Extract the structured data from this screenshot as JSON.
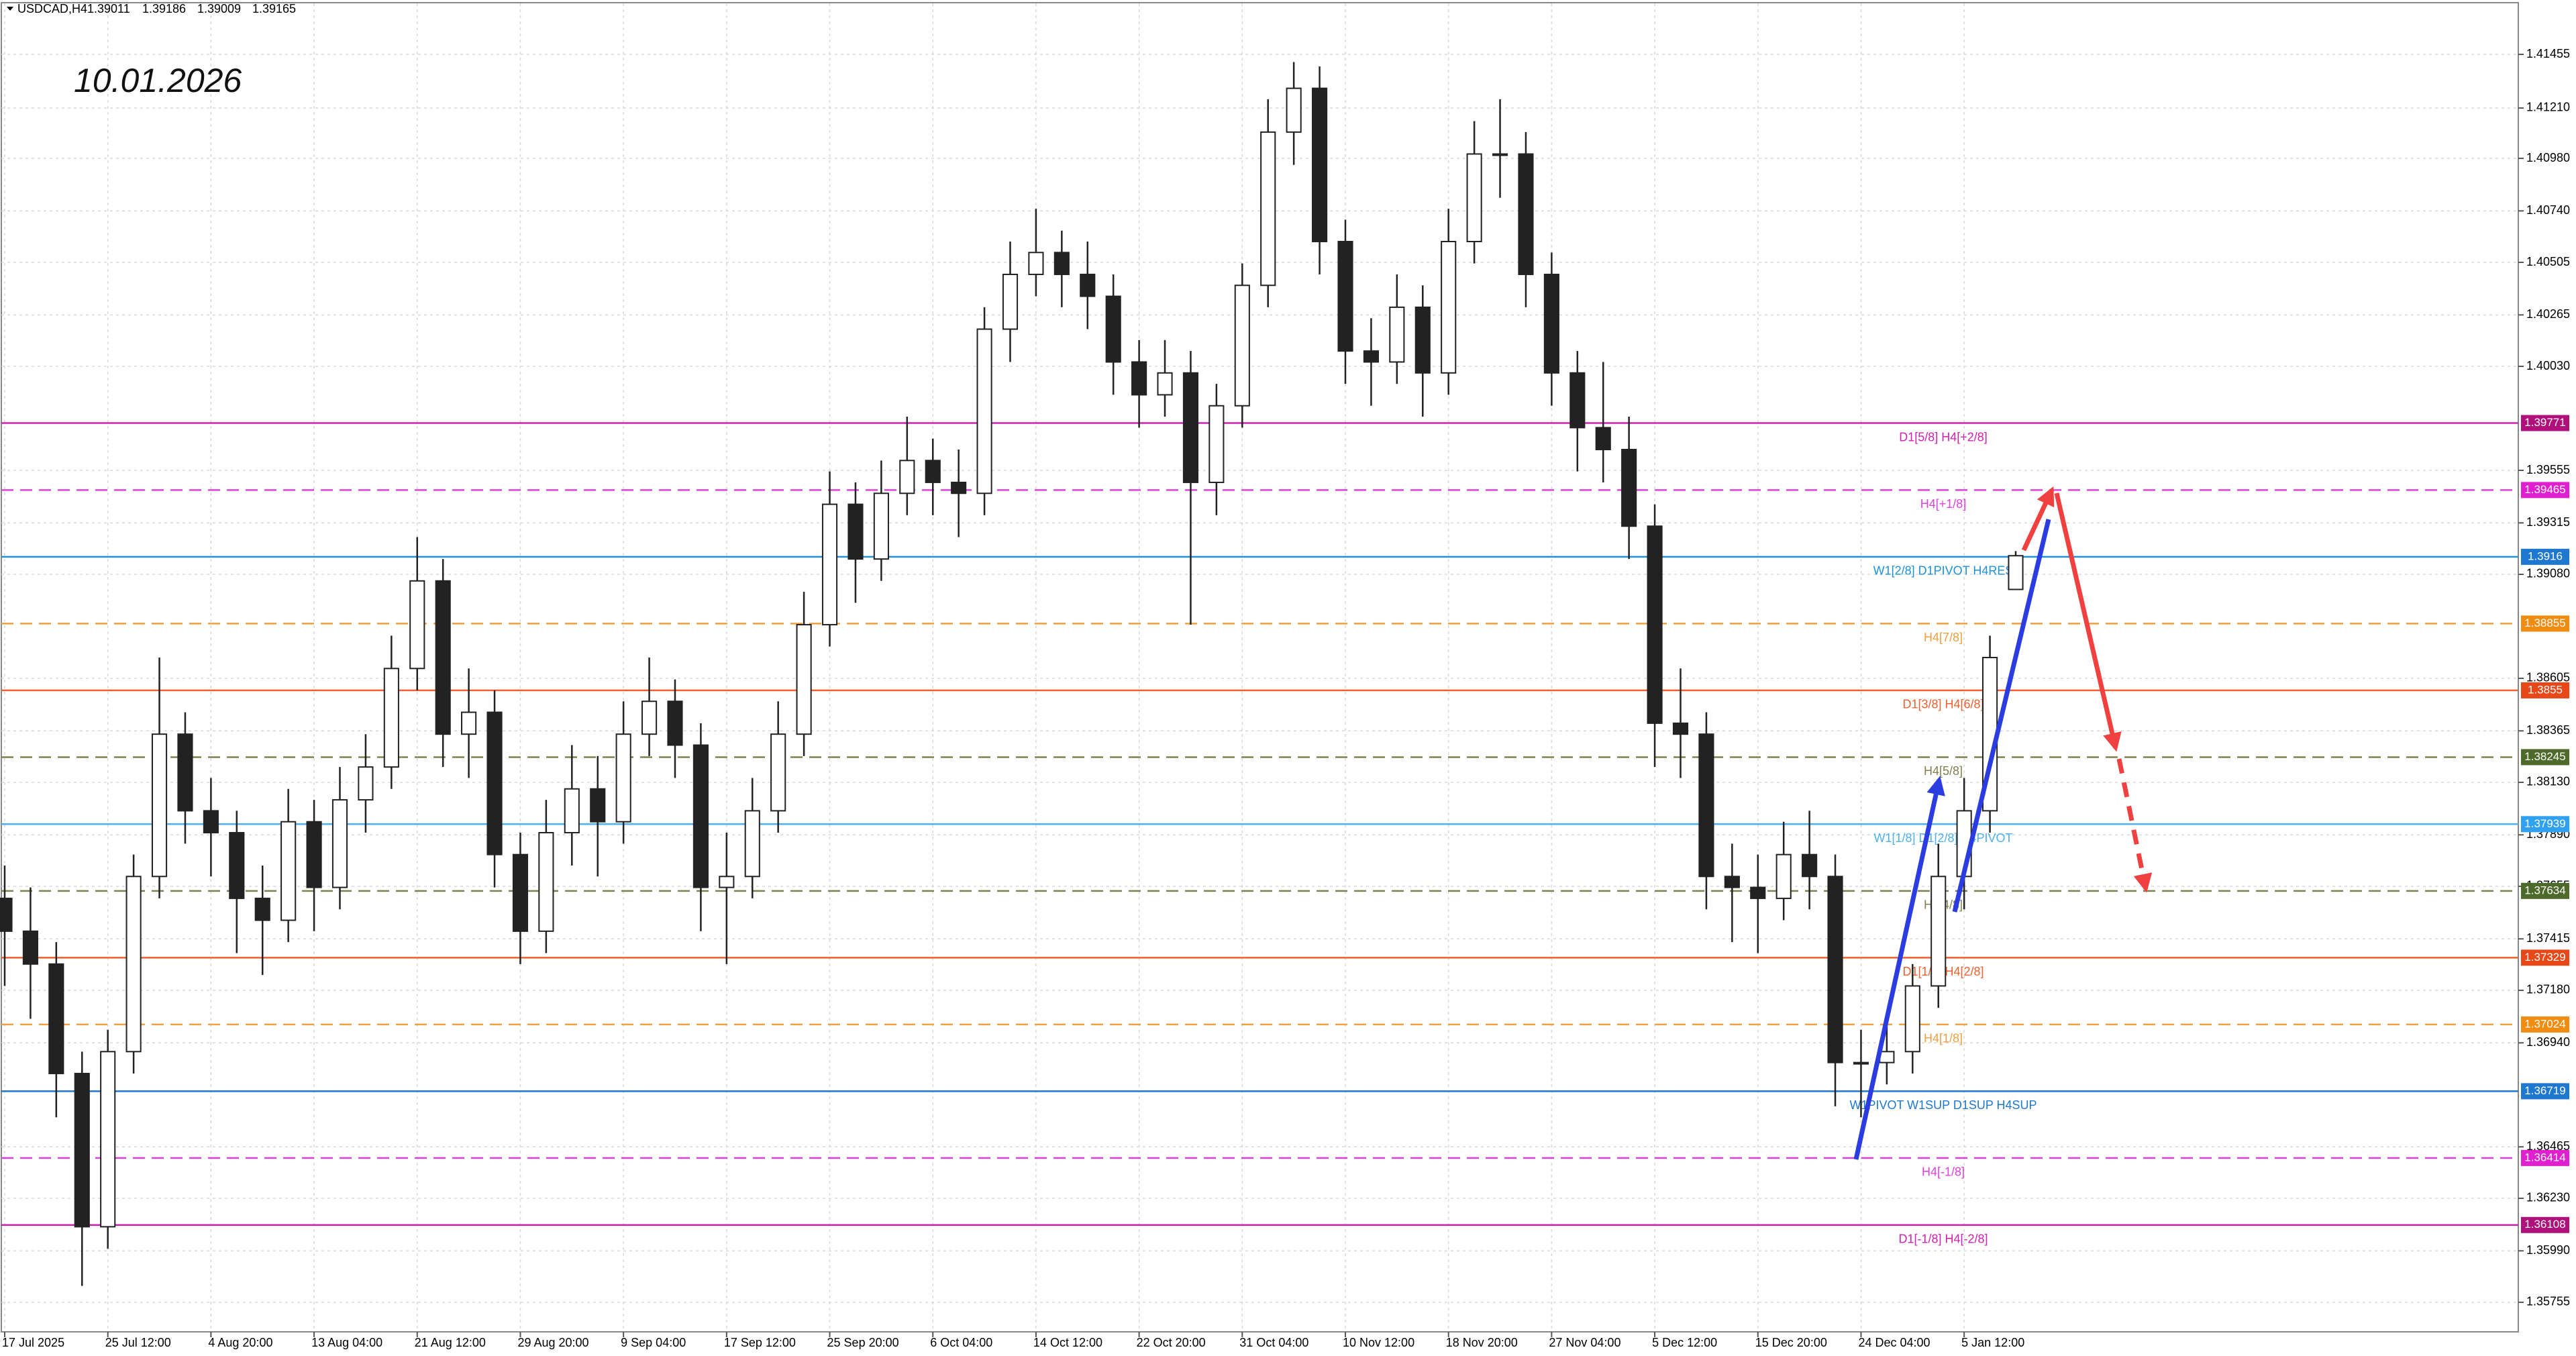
{
  "chart_data": {
    "type": "candlestick",
    "symbol": "USDCAD,H4",
    "annotation": "10.01.2026",
    "categories": [
      "17 Jul 2025",
      "25 Jul 12:00",
      "4 Aug 20:00",
      "13 Aug 04:00",
      "21 Aug 12:00",
      "29 Aug 20:00",
      "9 Sep 04:00",
      "17 Sep 12:00",
      "25 Sep 20:00",
      "6 Oct 04:00",
      "14 Oct 12:00",
      "22 Oct 20:00",
      "31 Oct 04:00",
      "10 Nov 12:00",
      "18 Nov 20:00",
      "27 Nov 04:00",
      "5 Dec 12:00",
      "15 Dec 20:00",
      "24 Dec 04:00",
      "5 Jan 12:00"
    ],
    "candles": [
      [
        1.376,
        1.3775,
        1.372,
        1.3745
      ],
      [
        1.3745,
        1.3765,
        1.3705,
        1.373
      ],
      [
        1.373,
        1.374,
        1.366,
        1.368
      ],
      [
        1.368,
        1.369,
        1.3583,
        1.361
      ],
      [
        1.361,
        1.37,
        1.36,
        1.369
      ],
      [
        1.369,
        1.378,
        1.368,
        1.377
      ],
      [
        1.377,
        1.387,
        1.376,
        1.3835
      ],
      [
        1.3835,
        1.3845,
        1.3785,
        1.38
      ],
      [
        1.38,
        1.3815,
        1.377,
        1.379
      ],
      [
        1.379,
        1.38,
        1.3735,
        1.376
      ],
      [
        1.376,
        1.3775,
        1.3725,
        1.375
      ],
      [
        1.375,
        1.381,
        1.374,
        1.3795
      ],
      [
        1.3795,
        1.3805,
        1.3745,
        1.3765
      ],
      [
        1.3765,
        1.382,
        1.3755,
        1.3805
      ],
      [
        1.3805,
        1.3835,
        1.379,
        1.382
      ],
      [
        1.382,
        1.388,
        1.381,
        1.3865
      ],
      [
        1.3865,
        1.3925,
        1.3855,
        1.3905
      ],
      [
        1.3905,
        1.3915,
        1.382,
        1.3835
      ],
      [
        1.3835,
        1.3865,
        1.3815,
        1.3845
      ],
      [
        1.3845,
        1.3855,
        1.3765,
        1.378
      ],
      [
        1.378,
        1.379,
        1.373,
        1.3745
      ],
      [
        1.3745,
        1.3805,
        1.3735,
        1.379
      ],
      [
        1.379,
        1.383,
        1.3775,
        1.381
      ],
      [
        1.381,
        1.3825,
        1.377,
        1.3795
      ],
      [
        1.3795,
        1.385,
        1.3785,
        1.3835
      ],
      [
        1.3835,
        1.387,
        1.3825,
        1.385
      ],
      [
        1.385,
        1.386,
        1.3815,
        1.383
      ],
      [
        1.383,
        1.384,
        1.3745,
        1.3765
      ],
      [
        1.3765,
        1.379,
        1.373,
        1.377
      ],
      [
        1.377,
        1.3815,
        1.376,
        1.38
      ],
      [
        1.38,
        1.385,
        1.379,
        1.3835
      ],
      [
        1.3835,
        1.39,
        1.3825,
        1.3885
      ],
      [
        1.3885,
        1.3955,
        1.3875,
        1.394
      ],
      [
        1.394,
        1.395,
        1.3895,
        1.3915
      ],
      [
        1.3915,
        1.396,
        1.3905,
        1.3945
      ],
      [
        1.3945,
        1.398,
        1.3935,
        1.396
      ],
      [
        1.396,
        1.397,
        1.3935,
        1.395
      ],
      [
        1.395,
        1.3965,
        1.3925,
        1.3945
      ],
      [
        1.3945,
        1.403,
        1.3935,
        1.402
      ],
      [
        1.402,
        1.406,
        1.4005,
        1.4045
      ],
      [
        1.4045,
        1.4075,
        1.4035,
        1.4055
      ],
      [
        1.4055,
        1.4065,
        1.403,
        1.4045
      ],
      [
        1.4045,
        1.406,
        1.402,
        1.4035
      ],
      [
        1.4035,
        1.4045,
        1.399,
        1.4005
      ],
      [
        1.4005,
        1.4015,
        1.3975,
        1.399
      ],
      [
        1.399,
        1.4015,
        1.398,
        1.4
      ],
      [
        1.4,
        1.401,
        1.3885,
        1.395
      ],
      [
        1.395,
        1.3995,
        1.3935,
        1.3985
      ],
      [
        1.3985,
        1.405,
        1.3975,
        1.404
      ],
      [
        1.404,
        1.4125,
        1.403,
        1.411
      ],
      [
        1.411,
        1.4142,
        1.4095,
        1.413
      ],
      [
        1.413,
        1.414,
        1.4045,
        1.406
      ],
      [
        1.406,
        1.407,
        1.3995,
        1.401
      ],
      [
        1.401,
        1.4025,
        1.3985,
        1.4005
      ],
      [
        1.4005,
        1.4045,
        1.3995,
        1.403
      ],
      [
        1.403,
        1.404,
        1.398,
        1.4
      ],
      [
        1.4,
        1.4075,
        1.399,
        1.406
      ],
      [
        1.406,
        1.4115,
        1.405,
        1.41
      ],
      [
        1.41,
        1.4125,
        1.408,
        1.41
      ],
      [
        1.41,
        1.411,
        1.403,
        1.4045
      ],
      [
        1.4045,
        1.4055,
        1.3985,
        1.4
      ],
      [
        1.4,
        1.401,
        1.3955,
        1.3975
      ],
      [
        1.3975,
        1.4005,
        1.395,
        1.3965
      ],
      [
        1.3965,
        1.398,
        1.3915,
        1.393
      ],
      [
        1.393,
        1.394,
        1.382,
        1.384
      ],
      [
        1.384,
        1.3865,
        1.3815,
        1.3835
      ],
      [
        1.3835,
        1.3845,
        1.3755,
        1.377
      ],
      [
        1.377,
        1.3785,
        1.374,
        1.3765
      ],
      [
        1.3765,
        1.378,
        1.3735,
        1.376
      ],
      [
        1.376,
        1.3795,
        1.375,
        1.378
      ],
      [
        1.378,
        1.38,
        1.3755,
        1.377
      ],
      [
        1.377,
        1.378,
        1.3665,
        1.3685
      ],
      [
        1.3685,
        1.37,
        1.366,
        1.3685
      ],
      [
        1.3685,
        1.3705,
        1.3675,
        1.369
      ],
      [
        1.369,
        1.373,
        1.368,
        1.372
      ],
      [
        1.372,
        1.3785,
        1.371,
        1.377
      ],
      [
        1.377,
        1.3815,
        1.3755,
        1.38
      ],
      [
        1.38,
        1.388,
        1.379,
        1.387
      ],
      [
        1.39011,
        1.39186,
        1.39009,
        1.39165
      ]
    ],
    "levels": [
      {
        "name": "D1[5/8] H4[+2/8]",
        "price": 1.39771,
        "color": "#d020b0",
        "dashed": false,
        "box": "#b0107a"
      },
      {
        "name": "H4[+1/8]",
        "price": 1.39465,
        "color": "#e040e0",
        "dashed": true,
        "box": "#e020d0"
      },
      {
        "name": "W1[2/8] D1PIVOT H4RES",
        "price": 1.3916,
        "color": "#1e90e0",
        "dashed": false,
        "box": "#1e78d0"
      },
      {
        "name": "H4[7/8]",
        "price": 1.38855,
        "color": "#f0a040",
        "dashed": true,
        "box": "#f08c10"
      },
      {
        "name": "D1[3/8] H4[6/8]",
        "price": 1.3855,
        "color": "#f06030",
        "dashed": false,
        "box": "#e84818"
      },
      {
        "name": "H4[5/8]",
        "price": 1.38245,
        "color": "#808050",
        "dashed": true,
        "box": "#4e6a2a"
      },
      {
        "name": "W1[1/8] D1[2/8] H4PIVOT",
        "price": 1.37939,
        "color": "#50b0f0",
        "dashed": false,
        "box": "#30a0f0"
      },
      {
        "name": "H4[4/8]",
        "price": 1.37634,
        "color": "#808050",
        "dashed": true,
        "box": "#4e6a2a"
      },
      {
        "name": "D1[1/8] H4[2/8]",
        "price": 1.37329,
        "color": "#f06030",
        "dashed": false,
        "box": "#e84818"
      },
      {
        "name": "H4[1/8]",
        "price": 1.37024,
        "color": "#f0a040",
        "dashed": true,
        "box": "#f08c10"
      },
      {
        "name": "W1PIVOT W1SUP D1SUP H4SUP",
        "price": 1.36719,
        "color": "#1e78d0",
        "dashed": false,
        "box": "#1e78d0"
      },
      {
        "name": "H4[-1/8]",
        "price": 1.36414,
        "color": "#e040e0",
        "dashed": true,
        "box": "#e020d0"
      },
      {
        "name": "D1[-1/8] H4[-2/8]",
        "price": 1.36108,
        "color": "#d020b0",
        "dashed": false,
        "box": "#b0107a"
      }
    ],
    "ylim": [
      1.3562,
      1.41688
    ],
    "yticks": [
      1.41455,
      {
        "value": 1.4121,
        "label": "1.41210"
      },
      {
        "value": 1.4098,
        "label": "1.40980"
      },
      {
        "value": 1.4074,
        "label": "1.40740"
      },
      1.40505,
      1.40265,
      {
        "value": 1.4003,
        "label": "1.40030"
      },
      1.39555,
      1.39315,
      {
        "value": 1.3908,
        "label": "1.39080"
      },
      1.38605,
      1.38365,
      {
        "value": 1.3813,
        "label": "1.38130"
      },
      {
        "value": 1.3789,
        "label": "1.37890"
      },
      1.37655,
      1.37415,
      {
        "value": 1.3718,
        "label": "1.37180"
      },
      {
        "value": 1.3694,
        "label": "1.36940"
      },
      1.36465,
      {
        "value": 1.3623,
        "label": "1.36230"
      },
      {
        "value": 1.3599,
        "label": "1.35990"
      },
      1.35755
    ],
    "grid": true
  }
}
